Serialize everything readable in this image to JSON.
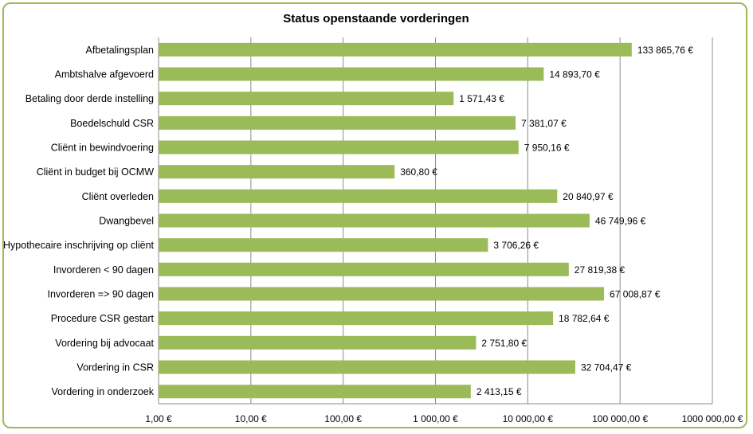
{
  "chart_data": {
    "type": "bar",
    "orientation": "horizontal",
    "title": "Status openstaande vorderingen",
    "xscale": "log",
    "xlim": [
      1,
      1000000
    ],
    "grid": true,
    "legend": "none",
    "bar_color": "#9bbb59",
    "frame_color": "#9bbb59",
    "categories": [
      "Afbetalingsplan",
      "Ambtshalve afgevoerd",
      "Betaling door derde instelling",
      "Boedelschuld CSR",
      "Cliënt in bewindvoering",
      "Cliënt in budget bij OCMW",
      "Cliënt overleden",
      "Dwangbevel",
      "Hypothecaire inschrijving op cliënt",
      "Invorderen < 90 dagen",
      "Invorderen => 90 dagen",
      "Procedure CSR gestart",
      "Vordering bij advocaat",
      "Vordering in CSR",
      "Vordering in onderzoek"
    ],
    "values": [
      133865.76,
      14893.7,
      1571.43,
      7381.07,
      7950.16,
      360.8,
      20840.97,
      46749.96,
      3706.26,
      27819.38,
      67008.87,
      18782.64,
      2751.8,
      32704.47,
      2413.15
    ],
    "value_labels": [
      "133 865,76 €",
      "14 893,70 €",
      "1 571,43 €",
      "7 381,07 €",
      "7 950,16 €",
      "360,80 €",
      "20 840,97 €",
      "46 749,96 €",
      "3 706,26 €",
      "27 819,38 €",
      "67 008,87 €",
      "18 782,64 €",
      "2 751,80 €",
      "32 704,47 €",
      "2 413,15 €"
    ],
    "ticks": [
      1,
      10,
      100,
      1000,
      10000,
      100000,
      1000000
    ],
    "tick_labels": [
      "1,00 €",
      "10,00 €",
      "100,00 €",
      "1 000,00 €",
      "10 000,00 €",
      "100 000,00 €",
      "1000 000,00 €"
    ]
  }
}
